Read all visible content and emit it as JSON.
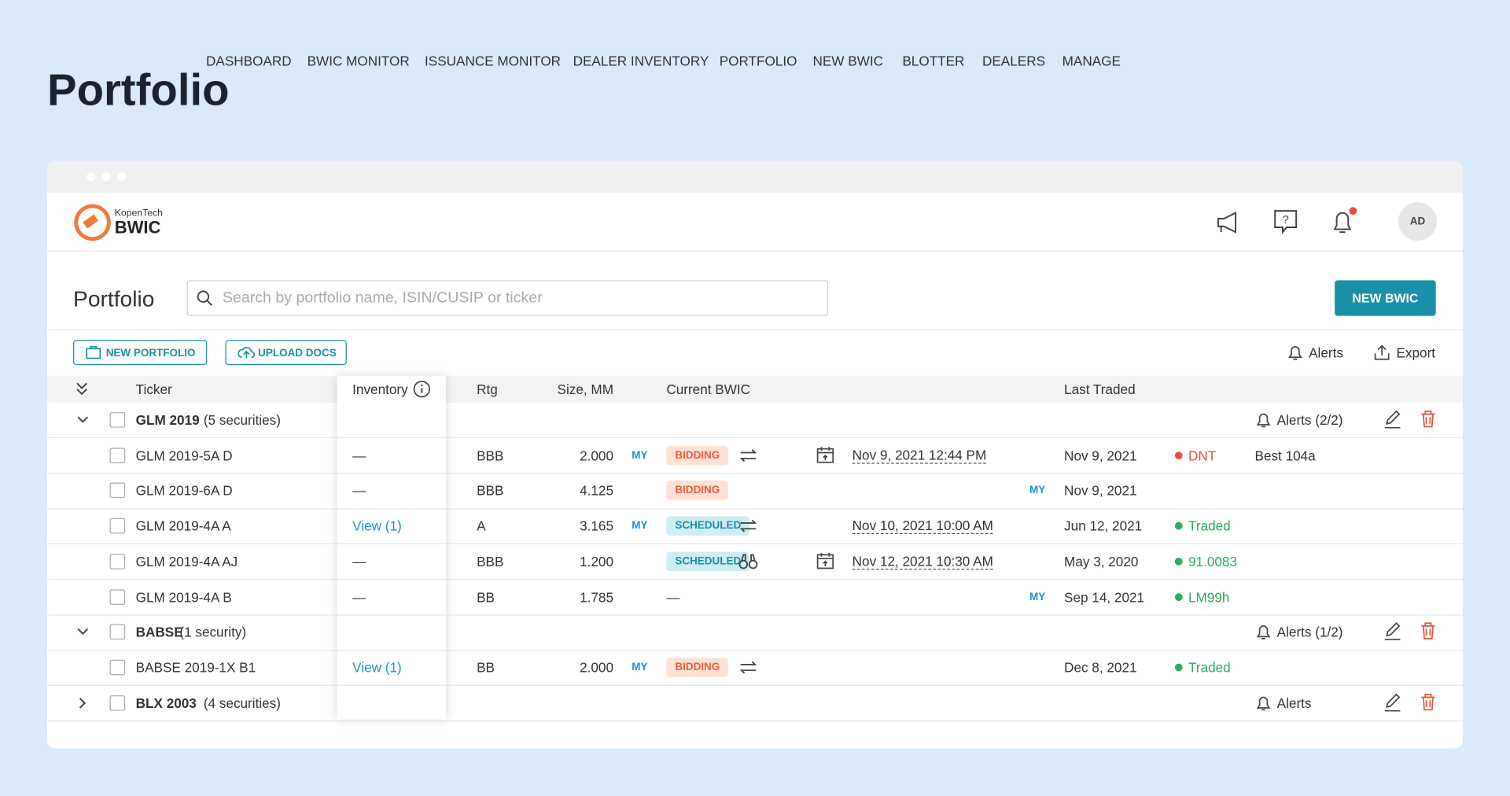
{
  "page_title": "Portfolio",
  "nav": {
    "logo_small": "KopenTech",
    "logo_big": "BWIC",
    "items": [
      "DASHBOARD",
      "BWIC MONITOR",
      "ISSUANCE MONITOR",
      "DEALER INVENTORY",
      "PORTFOLIO",
      "NEW BWIC",
      "BLOTTER",
      "DEALERS",
      "MANAGE"
    ],
    "avatar": "AD"
  },
  "toolbar": {
    "title": "Portfolio",
    "search_placeholder": "Search by portfolio name, ISIN/CUSIP or ticker",
    "new_bwic": "NEW BWIC",
    "new_portfolio": "NEW PORTFOLIO",
    "upload_docs": "UPLOAD DOCS",
    "alerts": "Alerts",
    "export": "Export"
  },
  "table": {
    "headers": [
      "Ticker",
      "Inventory",
      "Rtg",
      "Size, MM",
      "Current BWIC",
      "Last Traded"
    ],
    "groups": [
      {
        "name": "GLM 2019",
        "count": "(5 securities)",
        "alerts": "Alerts (2/2)",
        "expanded": true,
        "rows": [
          {
            "ticker": "GLM 2019-5A D",
            "inventory": "—",
            "rtg": "BBB",
            "size": "2.000",
            "my_size": "MY",
            "status": "BIDDING",
            "icon": "arrows",
            "calendar": true,
            "date": "Nov 9, 2021 12:44 PM",
            "last_traded": "Nov 9, 2021",
            "trade": "DNT",
            "trade_color": "#e8503a",
            "extra": "Best 104a"
          },
          {
            "ticker": "GLM 2019-6A D",
            "inventory": "—",
            "rtg": "BBB",
            "size": "4.125",
            "status": "BIDDING",
            "my_last": "MY",
            "last_traded": "Nov 9, 2021"
          },
          {
            "ticker": "GLM 2019-4A A",
            "inventory": "View (1)",
            "rtg": "A",
            "size": "3.165",
            "my_size": "MY",
            "status": "SCHEDULED",
            "icon": "arrows",
            "date": "Nov 10, 2021 10:00 AM",
            "last_traded": "Jun 12, 2021",
            "trade": "Traded",
            "trade_color": "#27ae60"
          },
          {
            "ticker": "GLM 2019-4A AJ",
            "inventory": "—",
            "rtg": "BBB",
            "size": "1.200",
            "status": "SCHEDULED",
            "icon": "binoculars",
            "calendar": true,
            "date": "Nov 12, 2021 10:30 AM",
            "last_traded": "May 3, 2020",
            "trade": "91.0083",
            "trade_color": "#27ae60"
          },
          {
            "ticker": "GLM 2019-4A B",
            "inventory": "—",
            "rtg": "BB",
            "size": "1.785",
            "bwic": "—",
            "my_last": "MY",
            "last_traded": "Sep 14, 2021",
            "trade": "LM99h",
            "trade_color": "#27ae60"
          }
        ]
      },
      {
        "name": "BABSE",
        "count": "(1 security)",
        "alerts": "Alerts (1/2)",
        "expanded": true,
        "rows": [
          {
            "ticker": "BABSE 2019-1X B1",
            "inventory": "View (1)",
            "rtg": "BB",
            "size": "2.000",
            "my_size": "MY",
            "status": "BIDDING",
            "icon": "arrows",
            "last_traded": "Dec 8, 2021",
            "trade": "Traded",
            "trade_color": "#27ae60"
          }
        ]
      },
      {
        "name": "BLX 2003",
        "count": "(4 securities)",
        "alerts": "Alerts",
        "expanded": false,
        "rows": []
      }
    ]
  }
}
